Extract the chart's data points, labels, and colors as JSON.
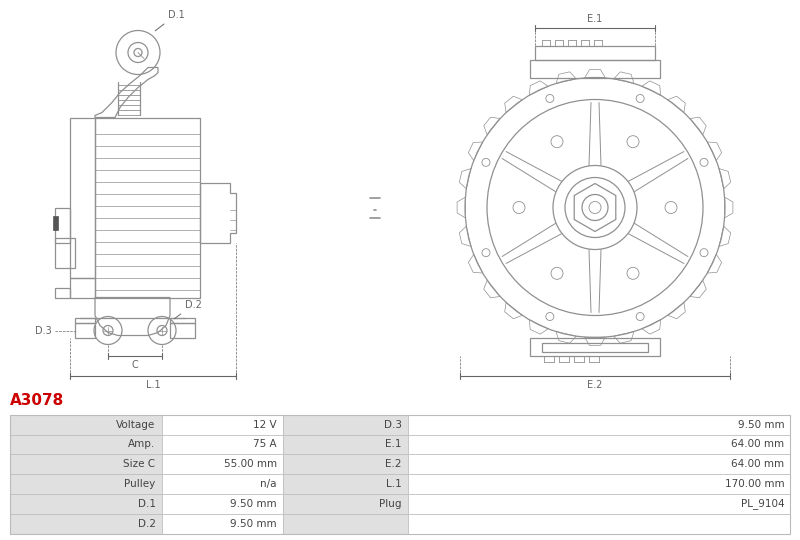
{
  "title_code": "A3078",
  "title_color": "#cc0000",
  "bg_color": "#ffffff",
  "table_header_bg": "#e0e0e0",
  "table_row_bg2": "#ffffff",
  "table_border_color": "#bbbbbb",
  "table_text_color": "#444444",
  "rows": [
    [
      "Voltage",
      "12 V",
      "D.3",
      "9.50 mm"
    ],
    [
      "Amp.",
      "75 A",
      "E.1",
      "64.00 mm"
    ],
    [
      "Size C",
      "55.00 mm",
      "E.2",
      "64.00 mm"
    ],
    [
      "Pulley",
      "n/a",
      "L.1",
      "170.00 mm"
    ],
    [
      "D.1",
      "9.50 mm",
      "Plug",
      "PL_9104"
    ],
    [
      "D.2",
      "9.50 mm",
      "",
      ""
    ]
  ],
  "lc": "#909090",
  "dc": "#666666",
  "lw": 0.9,
  "fs": 7.0
}
